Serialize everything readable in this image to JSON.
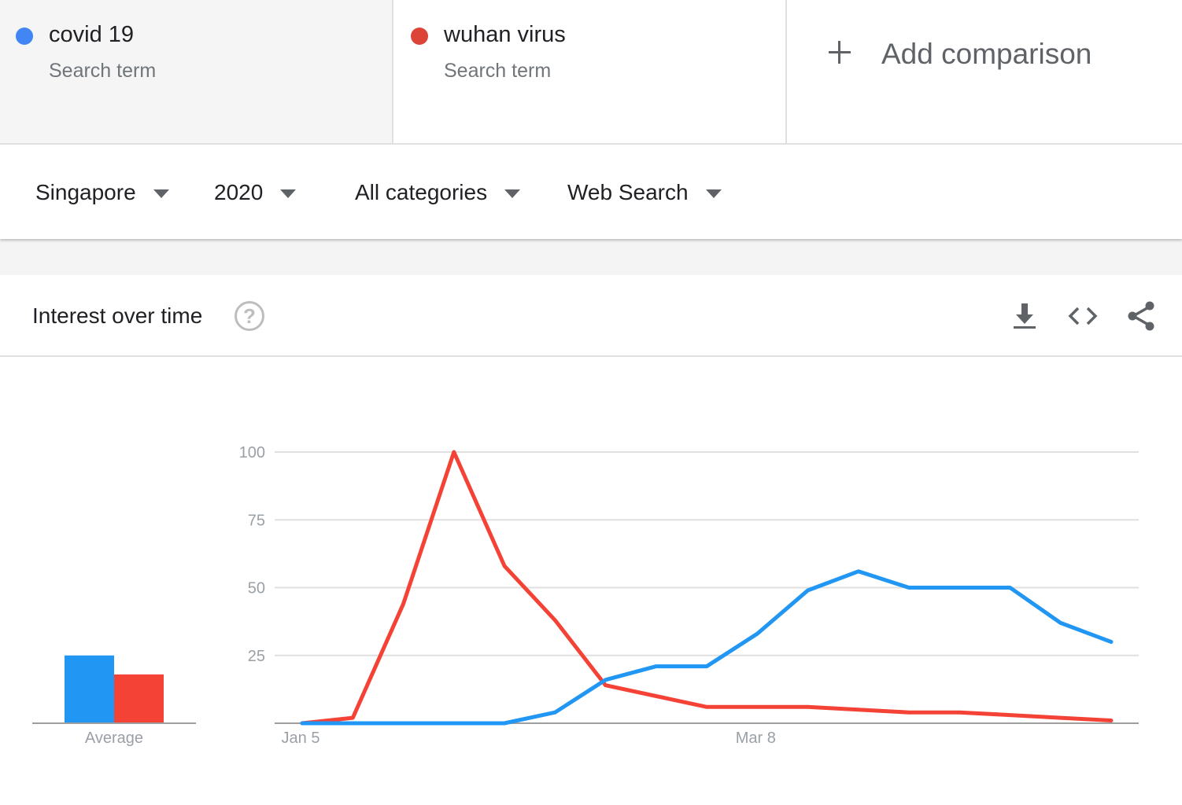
{
  "terms": [
    {
      "name": "covid 19",
      "sub": "Search term",
      "color": "#4285f4"
    },
    {
      "name": "wuhan virus",
      "sub": "Search term",
      "color": "#db4437"
    }
  ],
  "add_comparison": "Add comparison",
  "filters": {
    "region": "Singapore",
    "period": "2020",
    "category": "All categories",
    "property": "Web Search"
  },
  "card": {
    "title": "Interest over time",
    "help_glyph": "?",
    "icons": [
      "download-icon",
      "embed-code-icon",
      "share-icon"
    ]
  },
  "chart_data": {
    "type": "line",
    "x_tick_labels": [
      "Jan 5",
      "Mar 8"
    ],
    "y_ticks": [
      25,
      50,
      75,
      100
    ],
    "ylim": [
      0,
      100
    ],
    "grid": true,
    "series": [
      {
        "name": "covid 19",
        "color": "#2196f3",
        "values": [
          0,
          0,
          0,
          0,
          0,
          4,
          16,
          21,
          21,
          33,
          49,
          56,
          50,
          50,
          50,
          37,
          30
        ]
      },
      {
        "name": "wuhan virus",
        "color": "#f44336",
        "values": [
          0,
          2,
          44,
          100,
          58,
          38,
          14,
          10,
          6,
          6,
          6,
          5,
          4,
          4,
          3,
          2,
          1
        ]
      }
    ],
    "average": {
      "label": "Average",
      "values": [
        25,
        18
      ]
    }
  }
}
